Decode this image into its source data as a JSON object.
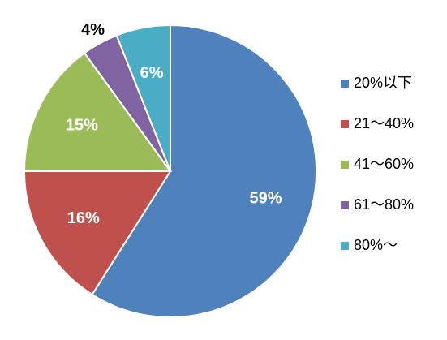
{
  "chart_data": {
    "type": "pie",
    "categories": [
      "20%以下",
      "21～40%",
      "41～60%",
      "61～80%",
      "80%～"
    ],
    "values": [
      59,
      16,
      15,
      4,
      6
    ],
    "value_labels": [
      "59%",
      "16%",
      "15%",
      "4%",
      "6%"
    ],
    "colors": [
      "#4f81bd",
      "#c0504d",
      "#9bbb59",
      "#8064a2",
      "#4bacc6"
    ],
    "legend": "right"
  }
}
